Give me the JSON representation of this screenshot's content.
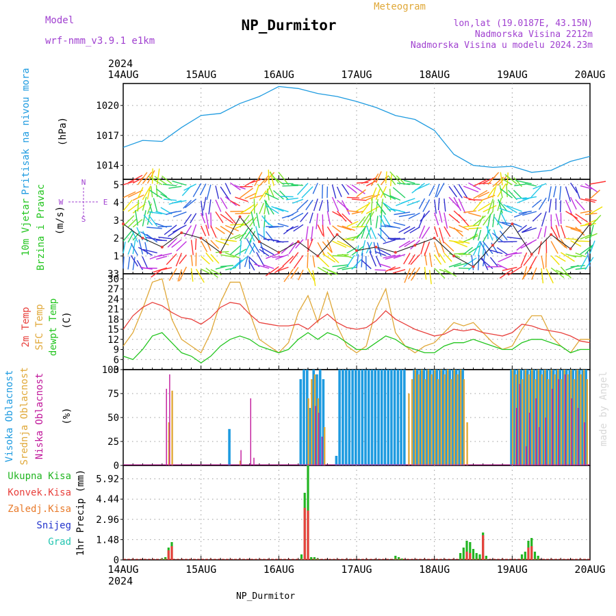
{
  "header": {
    "model_label": "Model",
    "model_name": "wrf-nmm_v3.9.1 e1km",
    "title": "NP_Durmitor",
    "subtitle": "Meteogram",
    "lonlat": "lon,lat (19.0187E, 43.15N)",
    "elevation": "Nadmorska Visina 2212m",
    "model_elevation": "Nadmorska Visina u modelu 2024.23m",
    "year": "2024",
    "footer_station": "NP_Durmitor",
    "credit": "made by Angel"
  },
  "colors": {
    "pressure": "#1e9be0",
    "temp2m": "#e8403c",
    "sfc": "#e0a838",
    "dewpt": "#22c51e",
    "high_cloud": "#1e9be0",
    "mid_cloud": "#e0a838",
    "low_cloud": "#c0169a",
    "total_precip": "#22b522",
    "conv_precip": "#e8403c",
    "frz_precip": "#e87a2a",
    "snow": "#2233cc",
    "graupel": "#22c5b0",
    "purple": "#a040d0"
  },
  "chart_data": {
    "type": "line",
    "x_ticks": [
      "14AUG",
      "15AUG",
      "16AUG",
      "17AUG",
      "18AUG",
      "19AUG",
      "20AUG"
    ],
    "x_range_hours": [
      0,
      144
    ],
    "panels": [
      {
        "id": "pressure",
        "ylabel": [
          "Pritisak na nivou mora",
          "(hPa)"
        ],
        "unit": "(hPa)",
        "yticks": [
          1014,
          1017,
          1020
        ],
        "ylim": [
          1012.6,
          1022.2
        ],
        "series": [
          {
            "name": "Pritisak na nivou mora",
            "x": [
              0,
              6,
              12,
              18,
              24,
              30,
              36,
              42,
              48,
              54,
              60,
              66,
              72,
              78,
              84,
              90,
              96,
              102,
              108,
              114,
              120,
              126,
              132,
              138,
              144
            ],
            "values": [
              1015.8,
              1016.5,
              1016.4,
              1017.8,
              1019.0,
              1019.2,
              1020.2,
              1020.9,
              1021.9,
              1021.7,
              1021.2,
              1020.9,
              1020.4,
              1019.8,
              1019.0,
              1018.6,
              1017.5,
              1015.1,
              1014.0,
              1013.8,
              1013.9,
              1013.3,
              1013.5,
              1014.4,
              1014.9
            ]
          }
        ]
      },
      {
        "id": "wind",
        "ylabel": [
          "10m Vjetar",
          "Brzina i Pravac",
          "(m/s)"
        ],
        "unit": "(m/s)",
        "yticks": [
          1,
          2,
          3,
          4,
          5
        ],
        "ylim": [
          0,
          5.3
        ],
        "compass_labels": [
          "N",
          "S",
          "W",
          "E"
        ],
        "series": [
          {
            "name": "10m Vjetar",
            "x": [
              0,
              6,
              12,
              18,
              24,
              30,
              36,
              42,
              48,
              54,
              60,
              66,
              72,
              78,
              84,
              90,
              96,
              102,
              108,
              114,
              120,
              126,
              132,
              138,
              144
            ],
            "values": [
              2.8,
              2.0,
              1.5,
              2.3,
              2.0,
              1.2,
              3.2,
              1.8,
              1.2,
              1.8,
              1.0,
              2.2,
              1.3,
              1.5,
              1.2,
              1.6,
              2.0,
              1.0,
              0.4,
              1.6,
              2.8,
              1.1,
              2.2,
              1.4,
              2.8
            ]
          }
        ]
      },
      {
        "id": "temperature",
        "ylabel": [
          "2m Temp",
          "SFC Temp",
          "dewpt Temp",
          "(C)"
        ],
        "unit": "(C)",
        "yticks": [
          3,
          6,
          9,
          12,
          15,
          18,
          21,
          24,
          27,
          30
        ],
        "ylim": [
          3,
          31.5
        ],
        "series": [
          {
            "name": "2m Temp",
            "x": [
              0,
              3,
              6,
              9,
              12,
              15,
              18,
              21,
              24,
              27,
              30,
              33,
              36,
              39,
              42,
              45,
              48,
              51,
              54,
              57,
              60,
              63,
              66,
              69,
              72,
              75,
              78,
              81,
              84,
              87,
              90,
              93,
              96,
              99,
              102,
              105,
              108,
              111,
              114,
              117,
              120,
              123,
              126,
              129,
              132,
              135,
              138,
              141,
              144
            ],
            "values": [
              15,
              19,
              21.5,
              23,
              22,
              20,
              18.5,
              18,
              16.5,
              18.5,
              21.5,
              23,
              22.5,
              19.5,
              17,
              16.5,
              16,
              16,
              16.5,
              15,
              17.5,
              19.5,
              17,
              15.5,
              15,
              15.5,
              17.5,
              20.5,
              18,
              16.5,
              15,
              14,
              13,
              13.5,
              15,
              14.5,
              15,
              14,
              13.5,
              13,
              14,
              16.5,
              16,
              15,
              14.5,
              14,
              13,
              11.5,
              11
            ]
          },
          {
            "name": "SFC Temp",
            "x": [
              0,
              3,
              6,
              9,
              12,
              15,
              18,
              21,
              24,
              27,
              30,
              33,
              36,
              39,
              42,
              45,
              48,
              51,
              54,
              57,
              60,
              63,
              66,
              69,
              72,
              75,
              78,
              81,
              84,
              87,
              90,
              93,
              96,
              99,
              102,
              105,
              108,
              111,
              114,
              117,
              120,
              123,
              126,
              129,
              132,
              135,
              138,
              141,
              144
            ],
            "values": [
              10,
              14,
              21,
              29,
              30,
              18,
              12,
              10,
              8,
              14,
              23,
              29,
              29,
              20,
              12,
              10,
              8,
              11,
              20,
              25,
              17,
              26,
              16,
              10,
              8,
              10,
              21,
              27,
              14,
              10,
              8,
              10,
              11,
              14,
              17,
              16,
              17,
              14,
              11,
              9,
              10,
              15,
              19,
              19,
              13,
              10,
              8,
              12,
              12
            ]
          },
          {
            "name": "dewpt Temp",
            "x": [
              0,
              3,
              6,
              9,
              12,
              15,
              18,
              21,
              24,
              27,
              30,
              33,
              36,
              39,
              42,
              45,
              48,
              51,
              54,
              57,
              60,
              63,
              66,
              69,
              72,
              75,
              78,
              81,
              84,
              87,
              90,
              93,
              96,
              99,
              102,
              105,
              108,
              111,
              114,
              117,
              120,
              123,
              126,
              129,
              132,
              135,
              138,
              141,
              144
            ],
            "values": [
              7,
              6,
              9,
              13,
              14,
              11,
              8,
              7,
              5,
              7,
              10,
              12,
              13,
              12,
              10,
              9,
              8,
              9,
              12,
              14,
              12,
              14,
              13,
              11,
              9,
              9,
              11,
              13,
              12,
              10,
              9,
              8,
              8,
              10,
              11,
              11,
              12,
              11,
              10,
              9,
              9,
              11,
              12,
              12,
              11,
              10,
              8,
              9,
              9
            ]
          }
        ]
      },
      {
        "id": "clouds",
        "ylabel": [
          "Visoka Oblacnost",
          "Srednja Oblacnost",
          "Niska Oblacnost",
          "(%)"
        ],
        "unit": "(%)",
        "yticks": [
          0,
          25,
          50,
          75,
          100
        ],
        "ylim": [
          0,
          100
        ],
        "series": [
          {
            "name": "Visoka Oblacnost",
            "type": "bar",
            "x": [
              33,
              37,
              55,
              56,
              57,
              58,
              59,
              60,
              61,
              62,
              66,
              67,
              68,
              69,
              70,
              71,
              72,
              73,
              74,
              75,
              76,
              77,
              78,
              79,
              80,
              81,
              82,
              83,
              84,
              85,
              86,
              87,
              90,
              91,
              92,
              93,
              94,
              95,
              96,
              97,
              98,
              99,
              100,
              101,
              102,
              103,
              104,
              105,
              120,
              121,
              122,
              123,
              124,
              125,
              126,
              127,
              128,
              129,
              130,
              131,
              132,
              133,
              134,
              135,
              136,
              137,
              138,
              139,
              140,
              141,
              142,
              143
            ],
            "values": [
              38,
              0,
              90,
              100,
              100,
              60,
              100,
              95,
              100,
              90,
              10,
              100,
              100,
              100,
              100,
              100,
              100,
              100,
              100,
              100,
              100,
              100,
              100,
              100,
              100,
              100,
              100,
              100,
              100,
              100,
              100,
              100,
              100,
              100,
              100,
              100,
              100,
              100,
              100,
              100,
              100,
              100,
              100,
              100,
              100,
              100,
              100,
              100,
              100,
              100,
              100,
              100,
              100,
              100,
              100,
              100,
              100,
              100,
              100,
              100,
              100,
              100,
              100,
              100,
              100,
              100,
              100,
              100,
              100,
              100,
              100,
              100
            ]
          },
          {
            "name": "Srednja Oblacnost",
            "type": "bar",
            "x": [
              14,
              15,
              36,
              57,
              58,
              59,
              60,
              62,
              88,
              89,
              90,
              91,
              92,
              93,
              94,
              95,
              96,
              97,
              98,
              99,
              100,
              101,
              102,
              103,
              104,
              105,
              106,
              120,
              121,
              122,
              123,
              124,
              125,
              126,
              127,
              128,
              129,
              130,
              131,
              132,
              133,
              134,
              135,
              136,
              137,
              138,
              139,
              140,
              141,
              142,
              143
            ],
            "values": [
              45,
              78,
              5,
              70,
              90,
              95,
              70,
              40,
              75,
              90,
              100,
              95,
              100,
              90,
              100,
              95,
              100,
              90,
              100,
              95,
              100,
              90,
              100,
              95,
              100,
              90,
              45,
              100,
              95,
              100,
              90,
              100,
              95,
              100,
              90,
              100,
              95,
              100,
              90,
              100,
              95,
              100,
              90,
              100,
              95,
              100,
              90,
              100,
              95,
              100,
              90
            ]
          },
          {
            "name": "Niska Oblacnost",
            "type": "bar",
            "x": [
              13,
              14,
              36,
              39,
              40,
              59,
              60,
              61,
              121,
              122,
              124,
              125,
              127,
              128,
              130,
              132,
              134,
              136,
              138,
              140,
              142
            ],
            "values": [
              80,
              95,
              16,
              70,
              8,
              62,
              55,
              30,
              60,
              85,
              20,
              55,
              70,
              40,
              50,
              80,
              90,
              95,
              70,
              60,
              45
            ]
          }
        ]
      },
      {
        "id": "precip",
        "ylabel": [
          "1hr Precip (mm)"
        ],
        "unit": "(mm)",
        "yticks": [
          0,
          1.48,
          2.96,
          4.44,
          5.92
        ],
        "ylim": [
          0,
          6.9
        ],
        "legend": [
          "Ukupna Kisa",
          "Konvek.Kisa",
          "Zaledj.Kisa",
          "Snijeg",
          "Grad"
        ],
        "series": [
          {
            "name": "Ukupna Kisa",
            "type": "bar",
            "x": [
              12,
              13,
              14,
              15,
              55,
              56,
              57,
              58,
              59,
              60,
              84,
              85,
              86,
              104,
              105,
              106,
              107,
              108,
              109,
              110,
              111,
              112,
              123,
              124,
              125,
              126,
              127,
              128
            ],
            "values": [
              0.1,
              0.2,
              0.9,
              1.3,
              0.4,
              4.9,
              6.9,
              0.2,
              0.2,
              0.1,
              0.3,
              0.2,
              0.1,
              0.5,
              0.9,
              1.4,
              1.3,
              0.8,
              0.5,
              0.4,
              2.0,
              0.3,
              0.4,
              0.6,
              1.4,
              1.6,
              0.6,
              0.3
            ]
          },
          {
            "name": "Konvek.Kisa",
            "type": "bar",
            "x": [
              14,
              15,
              56,
              57,
              106,
              107,
              111,
              125,
              126
            ],
            "values": [
              0.7,
              1.0,
              3.8,
              3.6,
              0.6,
              0.5,
              1.8,
              0.9,
              1.0
            ]
          }
        ]
      }
    ]
  }
}
